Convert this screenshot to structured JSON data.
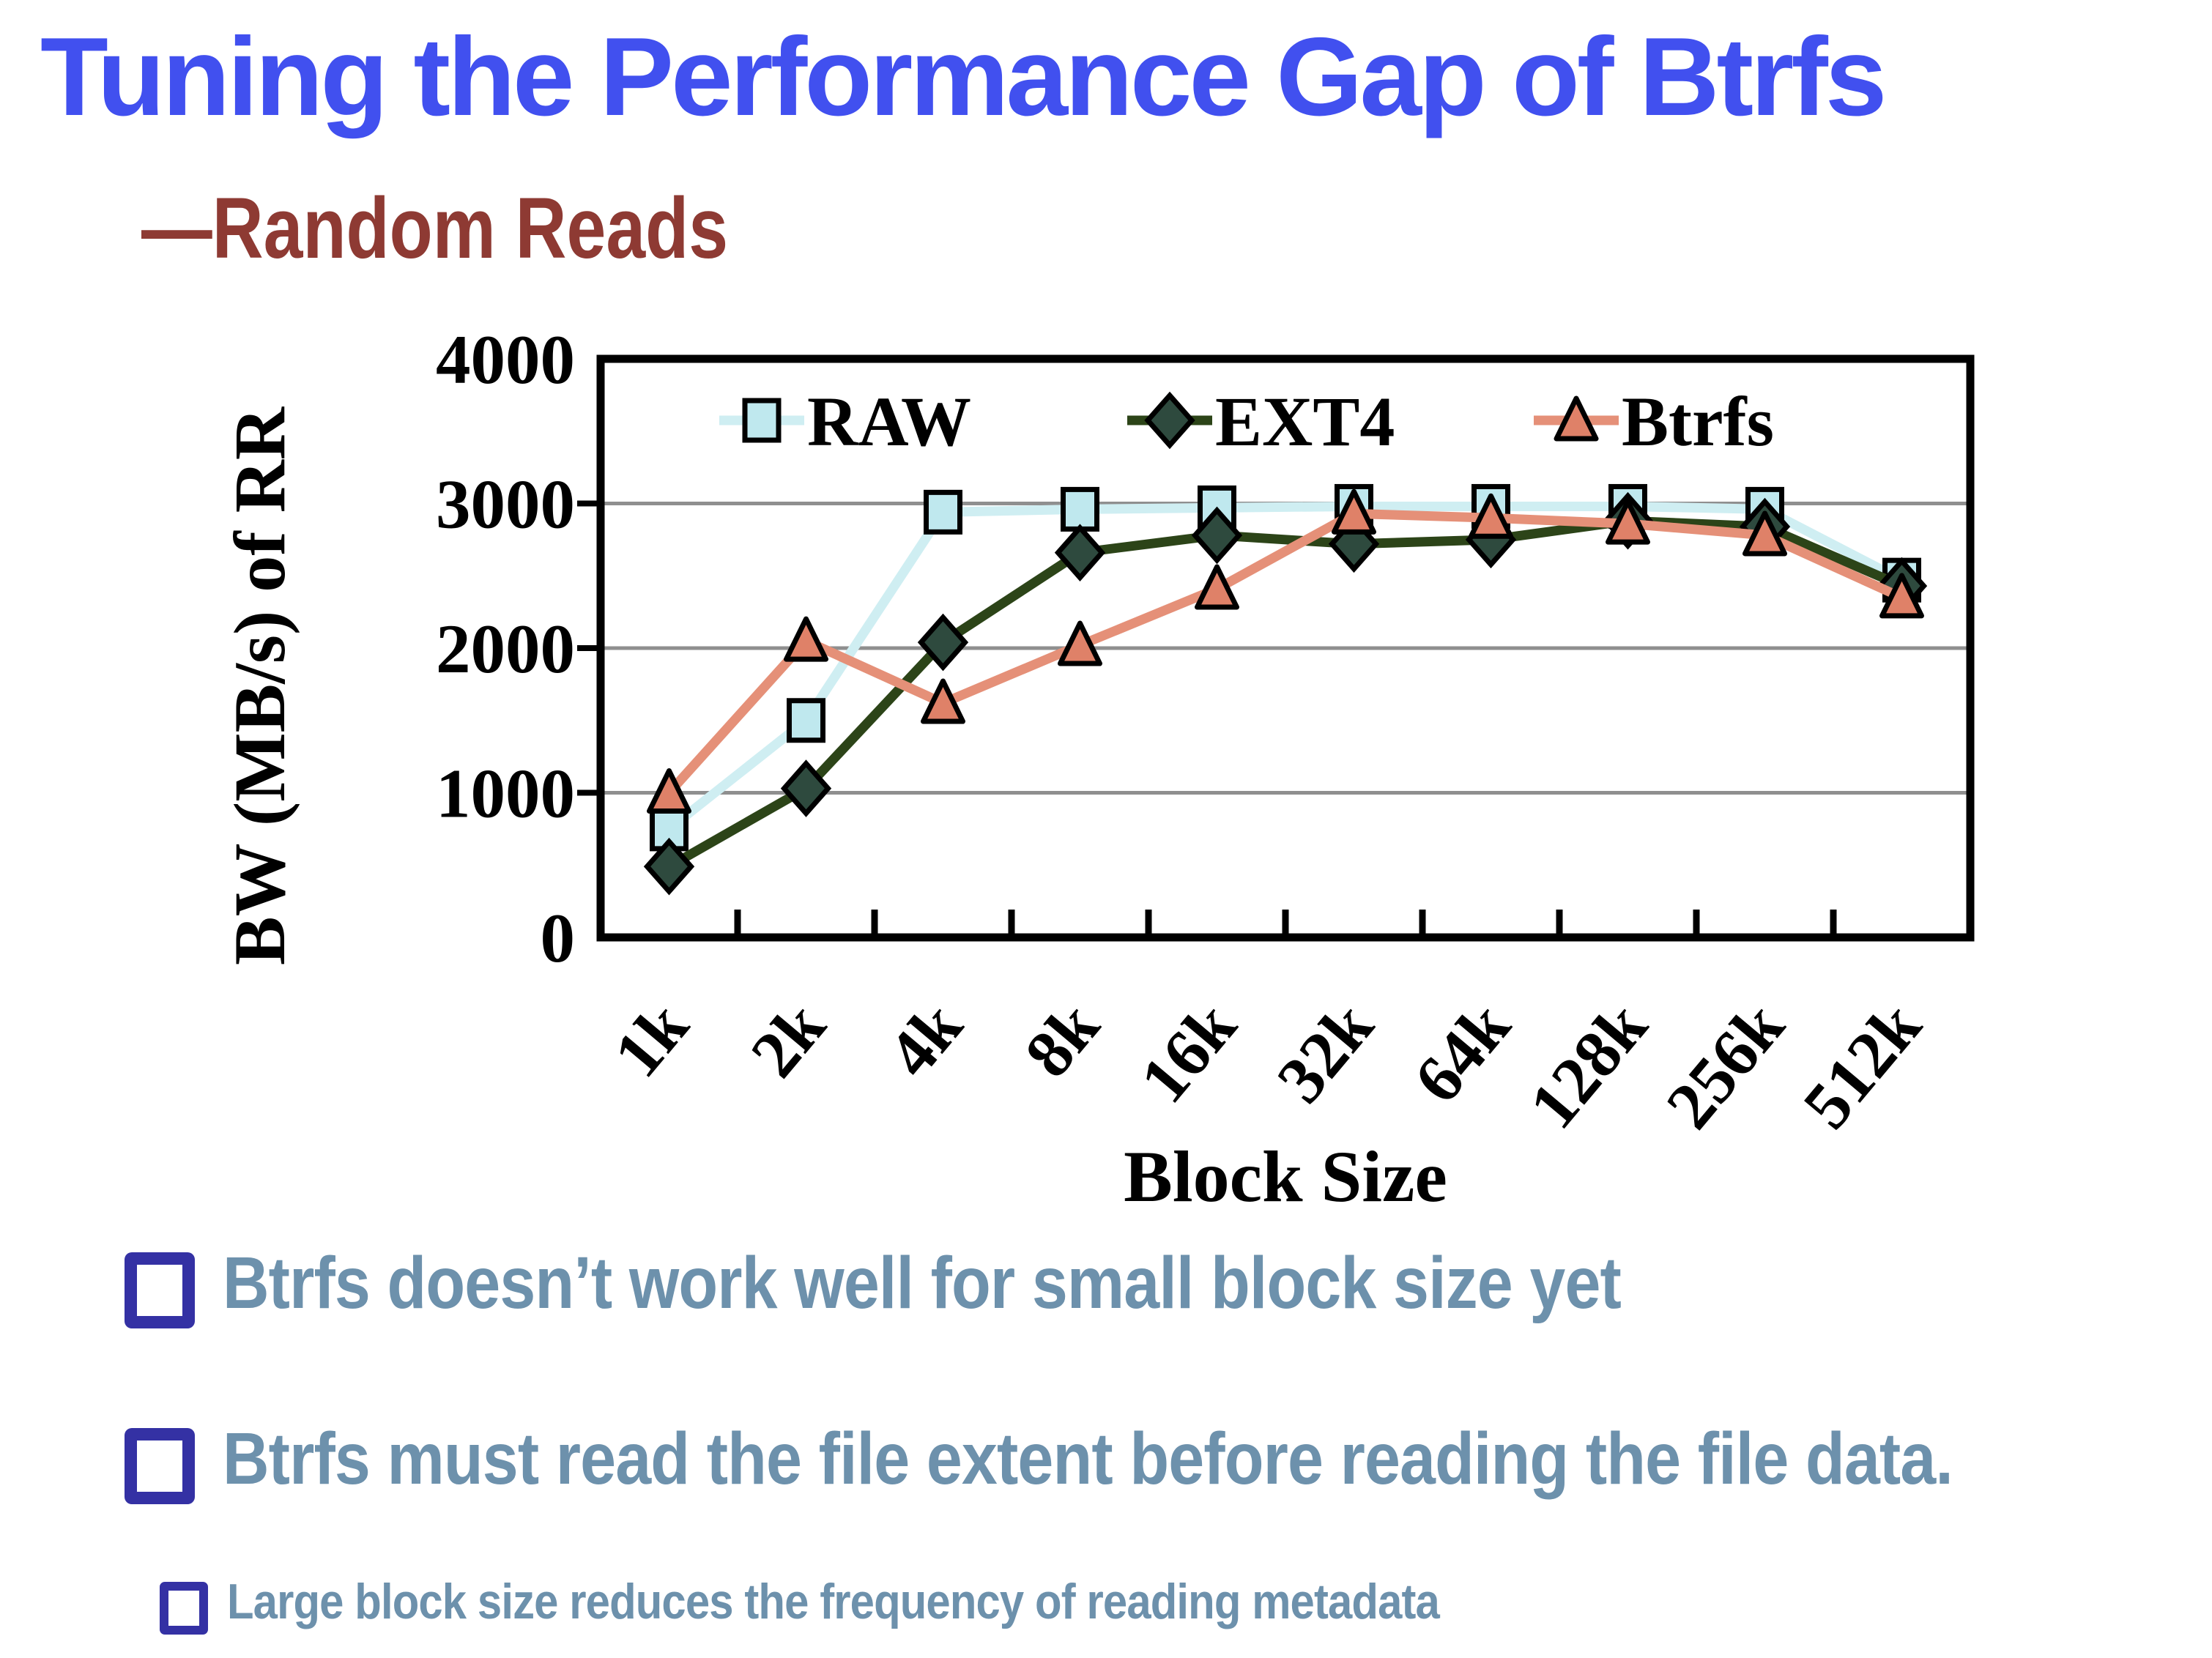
{
  "slide": {
    "title": "Tuning the Performance Gap of Btrfs",
    "subtitle": "—Random Reads",
    "bullets": [
      {
        "level": 1,
        "text": "Btrfs doesn’t work well for small block size yet"
      },
      {
        "level": 1,
        "text": "Btrfs must read the file extent before reading the file data."
      },
      {
        "level": 2,
        "text": "Large block size reduces the frequency of reading metadata"
      }
    ],
    "colors": {
      "title": "#4150ef",
      "subtitle": "#8e3a33",
      "bullet_text": "#6d91ac",
      "bullet_box": "#3431a4"
    }
  },
  "chart_data": {
    "type": "line",
    "title": "",
    "categories": [
      "1k",
      "2k",
      "4k",
      "8k",
      "16k",
      "32k",
      "64k",
      "128k",
      "256k",
      "512k"
    ],
    "series": [
      {
        "name": "RAW",
        "marker": "square",
        "line_color": "#cfeef2",
        "fill_color": "#bfe8ee",
        "values": [
          750,
          1500,
          2940,
          2960,
          2970,
          2980,
          2980,
          2980,
          2960,
          2470
        ]
      },
      {
        "name": "EXT4",
        "marker": "diamond",
        "line_color": "#2c4418",
        "fill_color": "#2e4a3e",
        "values": [
          490,
          1030,
          2040,
          2660,
          2780,
          2720,
          2750,
          2880,
          2840,
          2430
        ]
      },
      {
        "name": "Btrfs",
        "marker": "triangle",
        "line_color": "#e59078",
        "fill_color": "#df8168",
        "values": [
          1000,
          2050,
          1620,
          2020,
          2410,
          2930,
          2900,
          2860,
          2780,
          2350
        ]
      }
    ],
    "xlabel": "Block Size",
    "ylabel": "BW (MB/s) of RR",
    "ylim": [
      0,
      4000
    ],
    "yticks": [
      0,
      1000,
      2000,
      3000,
      4000
    ],
    "grid": true,
    "legend_position": "top-inside",
    "grid_color": "#8f8f8f",
    "axis_color": "#000000"
  }
}
